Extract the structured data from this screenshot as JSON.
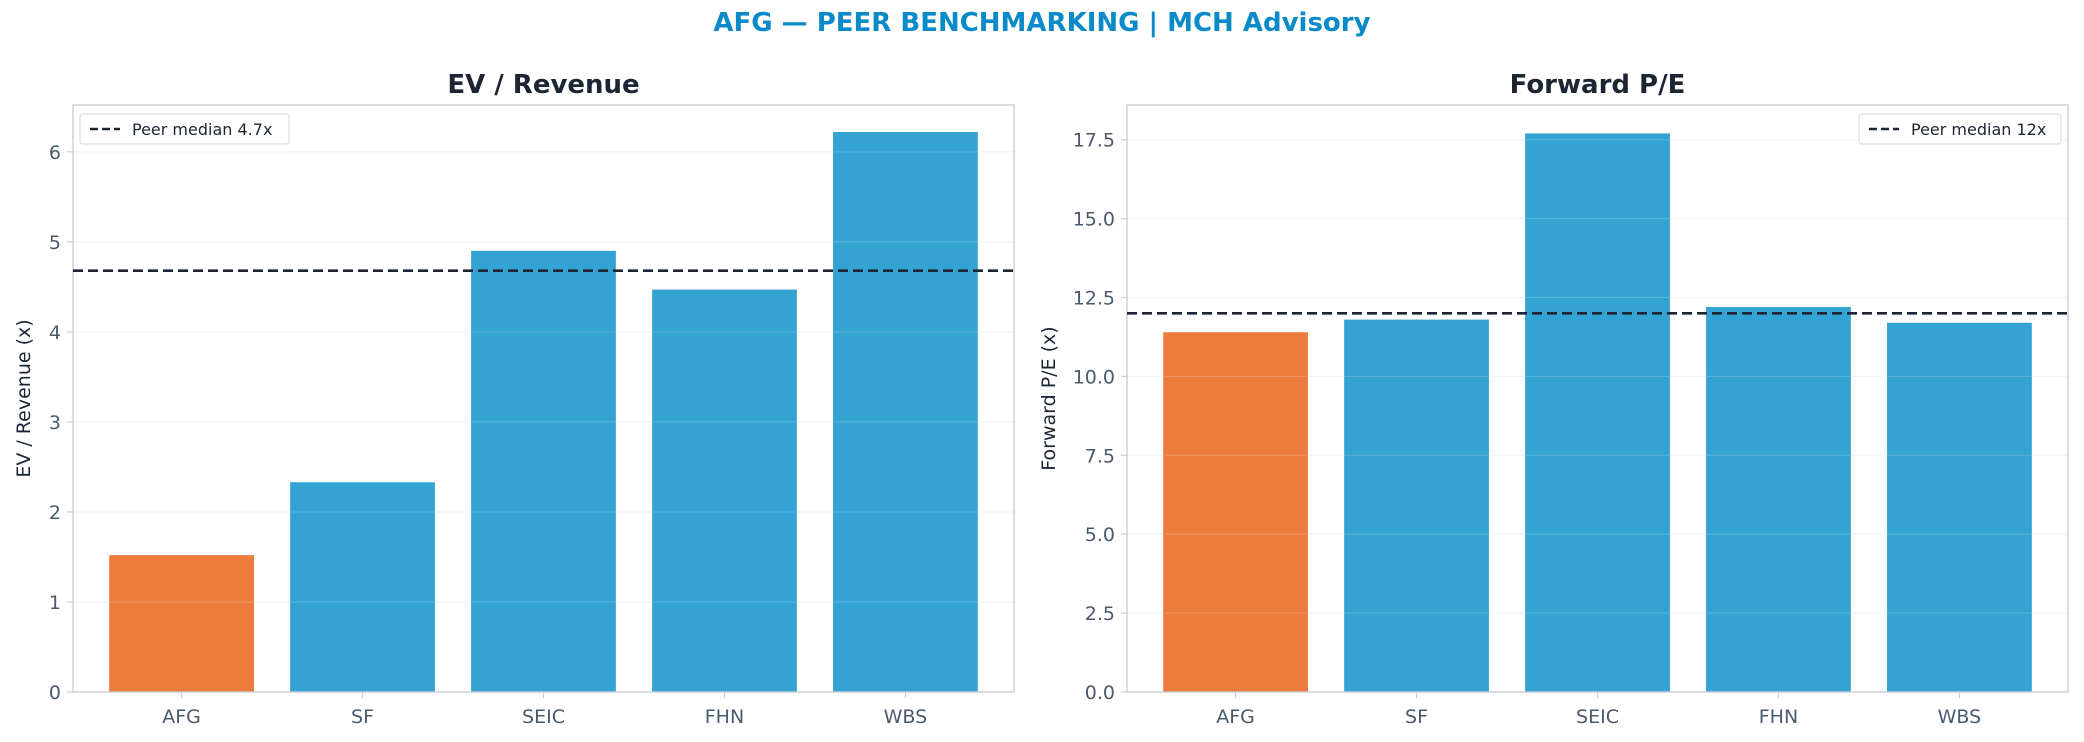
{
  "title": "AFG — PEER BENCHMARKING | MCH Advisory",
  "colors": {
    "title": "#0a8ac8",
    "highlight": "#ed7b3e",
    "peer": "#34a3d4",
    "median_line": "#1c2533",
    "axis": "#c9cdd3",
    "grid": "#eef0f2"
  },
  "chart_data": [
    {
      "type": "bar",
      "title": "EV / Revenue",
      "ylabel": "EV / Revenue (x)",
      "xlabel": "",
      "categories": [
        "AFG",
        "SF",
        "SEIC",
        "FHN",
        "WBS"
      ],
      "values": [
        1.52,
        2.33,
        4.9,
        4.47,
        6.22
      ],
      "highlight": "AFG",
      "ylim": [
        0,
        6.52
      ],
      "yticks": [
        0,
        1,
        2,
        3,
        4,
        5,
        6
      ],
      "ytick_labels": [
        "0",
        "1",
        "2",
        "3",
        "4",
        "5",
        "6"
      ],
      "median": 4.68,
      "legend": "Peer median 4.7x",
      "legend_position": "top-left",
      "grid": true
    },
    {
      "type": "bar",
      "title": "Forward P/E",
      "ylabel": "Forward P/E (x)",
      "xlabel": "",
      "categories": [
        "AFG",
        "SF",
        "SEIC",
        "FHN",
        "WBS"
      ],
      "values": [
        11.4,
        11.8,
        17.7,
        12.2,
        11.7
      ],
      "highlight": "AFG",
      "ylim": [
        0,
        18.6
      ],
      "yticks": [
        0,
        2.5,
        5,
        7.5,
        10,
        12.5,
        15,
        17.5
      ],
      "ytick_labels": [
        "0.0",
        "2.5",
        "5.0",
        "7.5",
        "10.0",
        "12.5",
        "15.0",
        "17.5"
      ],
      "median": 12,
      "legend": "Peer median 12x",
      "legend_position": "top-right",
      "grid": true
    }
  ]
}
